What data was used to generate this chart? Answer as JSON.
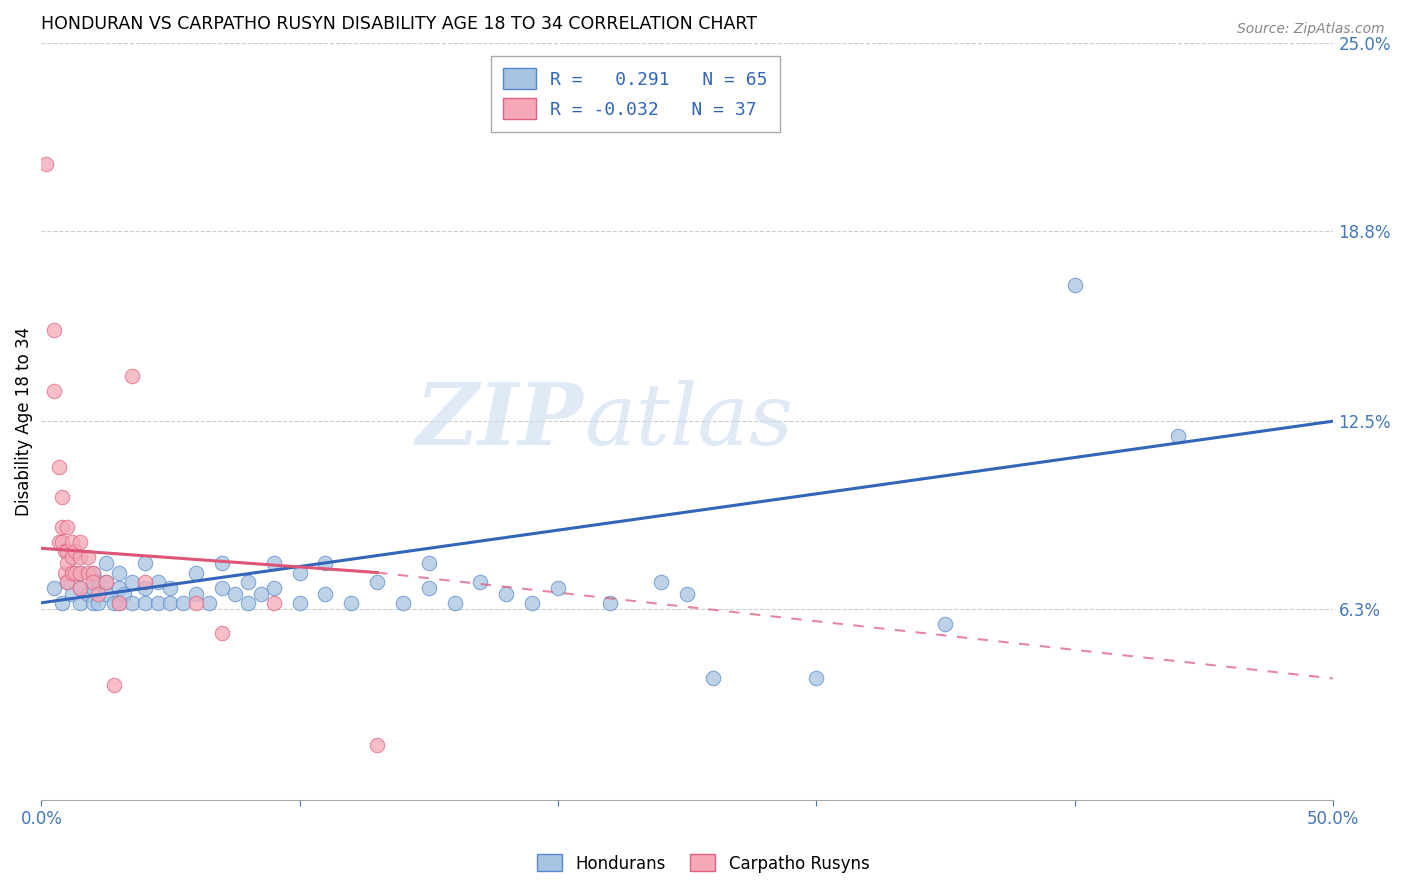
{
  "title": "HONDURAN VS CARPATHO RUSYN DISABILITY AGE 18 TO 34 CORRELATION CHART",
  "source": "Source: ZipAtlas.com",
  "ylabel": "Disability Age 18 to 34",
  "xlim": [
    0.0,
    0.5
  ],
  "ylim": [
    0.0,
    0.25
  ],
  "xticks": [
    0.0,
    0.1,
    0.2,
    0.3,
    0.4,
    0.5
  ],
  "xticklabels": [
    "0.0%",
    "",
    "",
    "",
    "",
    "50.0%"
  ],
  "ytick_labels_right": [
    "25.0%",
    "18.8%",
    "12.5%",
    "6.3%"
  ],
  "ytick_vals_right": [
    0.25,
    0.188,
    0.125,
    0.063
  ],
  "blue_R": 0.291,
  "blue_N": 65,
  "pink_R": -0.032,
  "pink_N": 37,
  "blue_color": "#a8c4e0",
  "pink_color": "#f4a8b8",
  "blue_edge_color": "#5588cc",
  "pink_edge_color": "#e06080",
  "blue_line_color": "#3366bb",
  "pink_line_color": "#dd5577",
  "grid_color": "#cccccc",
  "blue_scatter_x": [
    0.005,
    0.008,
    0.01,
    0.012,
    0.012,
    0.015,
    0.015,
    0.015,
    0.018,
    0.02,
    0.02,
    0.02,
    0.022,
    0.022,
    0.025,
    0.025,
    0.025,
    0.028,
    0.03,
    0.03,
    0.03,
    0.032,
    0.035,
    0.035,
    0.04,
    0.04,
    0.04,
    0.045,
    0.045,
    0.05,
    0.05,
    0.055,
    0.06,
    0.06,
    0.065,
    0.07,
    0.07,
    0.075,
    0.08,
    0.08,
    0.085,
    0.09,
    0.09,
    0.1,
    0.1,
    0.11,
    0.11,
    0.12,
    0.13,
    0.14,
    0.15,
    0.15,
    0.16,
    0.17,
    0.18,
    0.19,
    0.2,
    0.22,
    0.24,
    0.25,
    0.26,
    0.3,
    0.35,
    0.4,
    0.44
  ],
  "blue_scatter_y": [
    0.07,
    0.065,
    0.072,
    0.068,
    0.075,
    0.065,
    0.07,
    0.075,
    0.068,
    0.065,
    0.07,
    0.075,
    0.065,
    0.072,
    0.068,
    0.072,
    0.078,
    0.065,
    0.065,
    0.07,
    0.075,
    0.068,
    0.065,
    0.072,
    0.065,
    0.07,
    0.078,
    0.065,
    0.072,
    0.065,
    0.07,
    0.065,
    0.068,
    0.075,
    0.065,
    0.07,
    0.078,
    0.068,
    0.065,
    0.072,
    0.068,
    0.07,
    0.078,
    0.065,
    0.075,
    0.068,
    0.078,
    0.065,
    0.072,
    0.065,
    0.07,
    0.078,
    0.065,
    0.072,
    0.068,
    0.065,
    0.07,
    0.065,
    0.072,
    0.068,
    0.04,
    0.04,
    0.058,
    0.17,
    0.12
  ],
  "pink_scatter_x": [
    0.002,
    0.005,
    0.005,
    0.007,
    0.007,
    0.008,
    0.008,
    0.008,
    0.009,
    0.009,
    0.01,
    0.01,
    0.01,
    0.01,
    0.012,
    0.012,
    0.012,
    0.013,
    0.013,
    0.015,
    0.015,
    0.015,
    0.015,
    0.018,
    0.018,
    0.02,
    0.02,
    0.022,
    0.025,
    0.028,
    0.03,
    0.035,
    0.04,
    0.06,
    0.07,
    0.09,
    0.13
  ],
  "pink_scatter_y": [
    0.21,
    0.135,
    0.155,
    0.11,
    0.085,
    0.1,
    0.09,
    0.085,
    0.082,
    0.075,
    0.09,
    0.082,
    0.078,
    0.072,
    0.085,
    0.08,
    0.075,
    0.082,
    0.075,
    0.085,
    0.08,
    0.075,
    0.07,
    0.075,
    0.08,
    0.075,
    0.072,
    0.068,
    0.072,
    0.038,
    0.065,
    0.14,
    0.072,
    0.065,
    0.055,
    0.065,
    0.018
  ]
}
